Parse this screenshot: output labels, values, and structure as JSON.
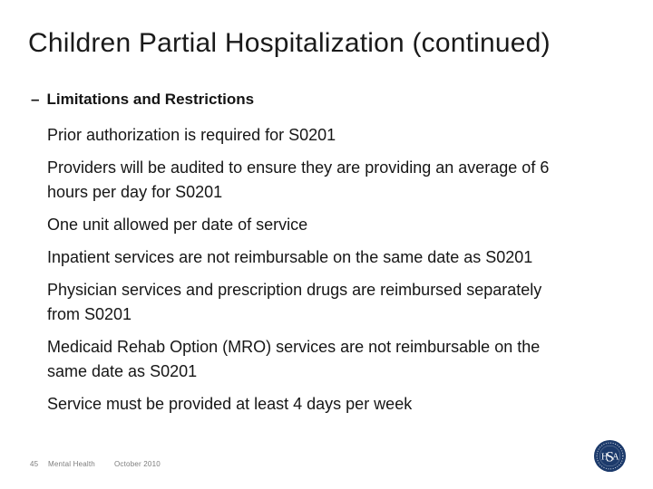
{
  "slide": {
    "title": "Children Partial Hospitalization (continued)",
    "section": {
      "dash": "–",
      "label": "Limitations and Restrictions"
    },
    "paragraphs": [
      {
        "lines": [
          "Prior authorization is required for S0201"
        ]
      },
      {
        "lines": [
          "Providers will be audited to ensure they are providing an average of 6",
          "hours per day for S0201"
        ]
      },
      {
        "lines": [
          "One unit allowed per date of service"
        ]
      },
      {
        "lines": [
          "Inpatient services are not reimbursable on the same date as S0201"
        ]
      },
      {
        "lines": [
          "Physician services and prescription drugs are reimbursed separately",
          "from S0201"
        ]
      },
      {
        "lines": [
          "Medicaid Rehab Option (MRO) services are not reimbursable on the",
          "same date as S0201"
        ]
      },
      {
        "lines": [
          "Service must be provided at least 4 days per week"
        ]
      }
    ],
    "footer": {
      "page_number": "45",
      "section_label": "Mental Health",
      "date_label": "October 2010"
    },
    "logo": {
      "monogram_letters": [
        "H",
        "S",
        "A"
      ],
      "seal_color": "#1c3a6b",
      "text_color": "#ffffff"
    }
  },
  "colors": {
    "background": "#ffffff",
    "title_text": "#1a1a1a",
    "body_text": "#161616",
    "footer_text": "#7d7d7d",
    "seal_navy": "#1c3a6b"
  }
}
